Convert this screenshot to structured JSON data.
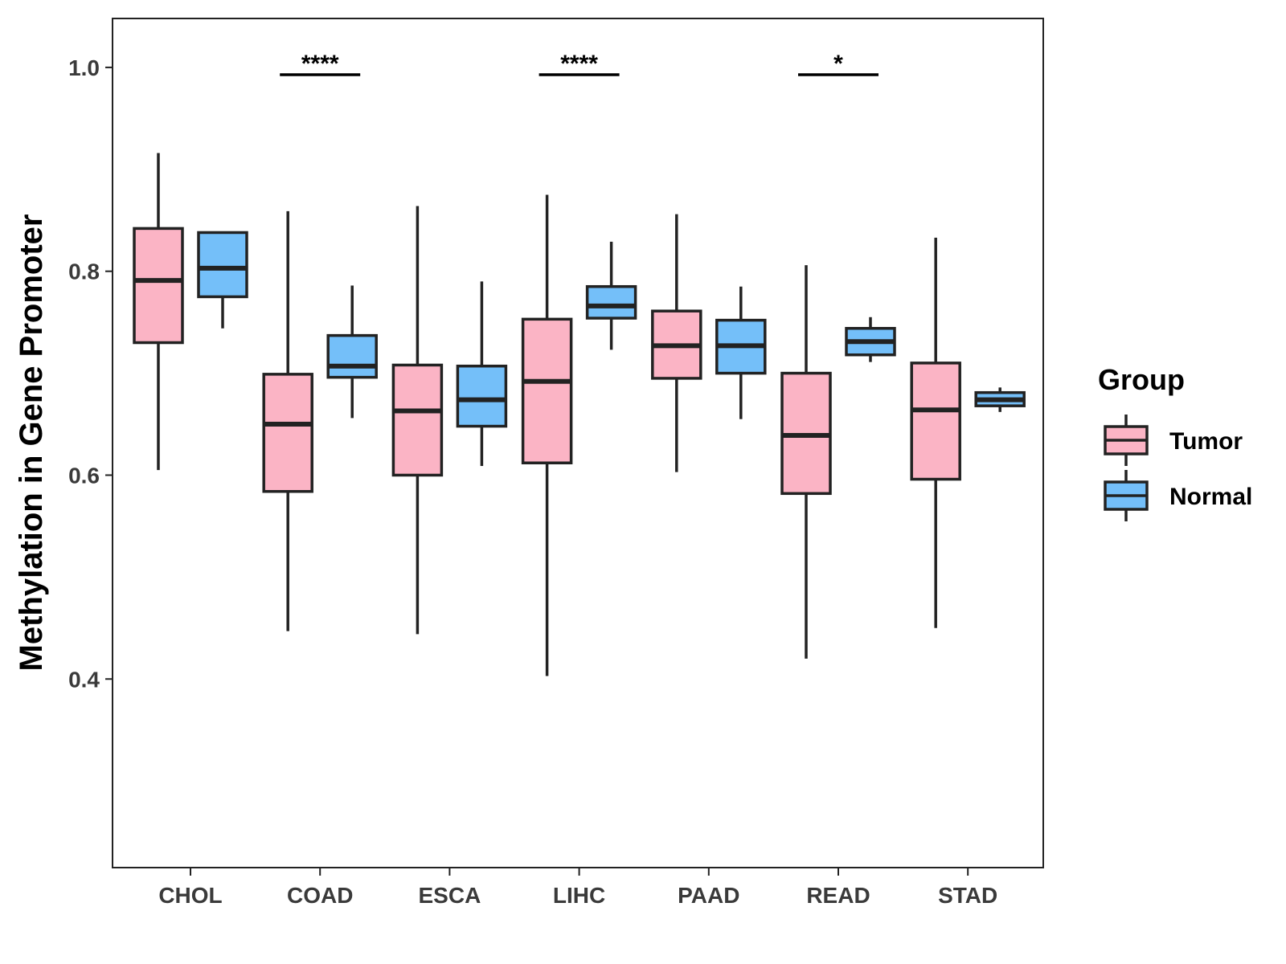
{
  "chart_data": {
    "type": "boxplot",
    "title": "",
    "xlabel": "",
    "ylabel": "Methylation in Gene Promoter",
    "ylim": [
      0.215,
      1.048
    ],
    "yticks": [
      0.4,
      0.6,
      0.8,
      1.0
    ],
    "ytick_labels": [
      "0.4",
      "0.6",
      "0.8",
      "1.0"
    ],
    "grid": false,
    "categories": [
      "CHOL",
      "COAD",
      "ESCA",
      "LIHC",
      "PAAD",
      "READ",
      "STAD"
    ],
    "series": [
      {
        "name": "Tumor",
        "color": "#fbb4c5",
        "boxes": [
          {
            "min": 0.605,
            "q1": 0.73,
            "median": 0.791,
            "q3": 0.842,
            "max": 0.916
          },
          {
            "min": 0.447,
            "q1": 0.584,
            "median": 0.65,
            "q3": 0.699,
            "max": 0.859
          },
          {
            "min": 0.444,
            "q1": 0.6,
            "median": 0.663,
            "q3": 0.708,
            "max": 0.864
          },
          {
            "min": 0.403,
            "q1": 0.612,
            "median": 0.692,
            "q3": 0.753,
            "max": 0.875
          },
          {
            "min": 0.603,
            "q1": 0.695,
            "median": 0.727,
            "q3": 0.761,
            "max": 0.856
          },
          {
            "min": 0.42,
            "q1": 0.582,
            "median": 0.639,
            "q3": 0.7,
            "max": 0.806
          },
          {
            "min": 0.45,
            "q1": 0.596,
            "median": 0.664,
            "q3": 0.71,
            "max": 0.833
          }
        ]
      },
      {
        "name": "Normal",
        "color": "#74bff9",
        "boxes": [
          {
            "min": 0.744,
            "q1": 0.775,
            "median": 0.803,
            "q3": 0.838,
            "max": 0.839
          },
          {
            "min": 0.656,
            "q1": 0.696,
            "median": 0.707,
            "q3": 0.737,
            "max": 0.786
          },
          {
            "min": 0.609,
            "q1": 0.648,
            "median": 0.674,
            "q3": 0.707,
            "max": 0.79
          },
          {
            "min": 0.723,
            "q1": 0.754,
            "median": 0.766,
            "q3": 0.785,
            "max": 0.829
          },
          {
            "min": 0.655,
            "q1": 0.7,
            "median": 0.727,
            "q3": 0.752,
            "max": 0.785
          },
          {
            "min": 0.711,
            "q1": 0.718,
            "median": 0.731,
            "q3": 0.744,
            "max": 0.755
          },
          {
            "min": 0.662,
            "q1": 0.668,
            "median": 0.674,
            "q3": 0.681,
            "max": 0.686
          }
        ]
      }
    ],
    "significance": [
      {
        "category": "COAD",
        "label": "****"
      },
      {
        "category": "LIHC",
        "label": "****"
      },
      {
        "category": "READ",
        "label": "*"
      }
    ],
    "legend": {
      "title": "Group",
      "position": "right",
      "entries": [
        "Tumor",
        "Normal"
      ]
    },
    "colors": {
      "outline": "#222222",
      "axis_text": "#3a3a3a",
      "background": "#ffffff"
    }
  }
}
